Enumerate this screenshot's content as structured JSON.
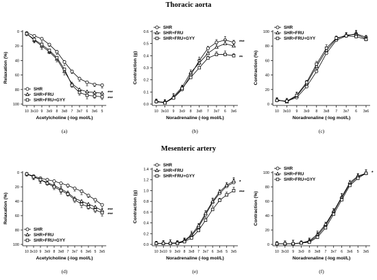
{
  "sections": [
    {
      "title": "Thoracic aorta"
    },
    {
      "title": "Mesenteric artery"
    }
  ],
  "chart_data": [
    {
      "panel": "(a)",
      "type": "line",
      "xlabel": "Acetylcholine (-log mol/L)",
      "ylabel": "Relaxation (%)",
      "x_ticks": [
        "10",
        "3x10",
        "9",
        "3x9",
        "8",
        "3x8",
        "7",
        "3x7",
        "6",
        "3x6",
        "5"
      ],
      "y_ticks": [
        "0",
        "20",
        "40",
        "60",
        "80",
        "100"
      ],
      "ylim": [
        0,
        100
      ],
      "y_inverted": true,
      "legend": [
        "SHR",
        "SHR+FRU",
        "SHR+FRU+GYY"
      ],
      "legend_position": "bottom-left",
      "significance": [
        "***",
        "***"
      ],
      "series": [
        {
          "name": "SHR",
          "marker": "circle",
          "values": [
            2,
            6,
            10,
            18,
            28,
            42,
            55,
            65,
            70,
            73,
            74
          ]
        },
        {
          "name": "SHR+FRU",
          "marker": "triangle",
          "values": [
            3,
            12,
            20,
            28,
            38,
            55,
            72,
            80,
            83,
            84,
            85
          ]
        },
        {
          "name": "SHR+FRU+GYY",
          "marker": "square",
          "values": [
            3,
            11,
            18,
            26,
            36,
            52,
            74,
            84,
            88,
            89,
            90
          ]
        }
      ]
    },
    {
      "panel": "(b)",
      "type": "line",
      "xlabel": "Noradrenaline (-log mol/L)",
      "ylabel": "Contraction (g)",
      "x_ticks": [
        "10",
        "3x10",
        "9",
        "3x9",
        "8",
        "3x8",
        "7",
        "3x7",
        "6",
        "3x6"
      ],
      "y_ticks": [
        "0.0",
        "0.1",
        "0.2",
        "0.3",
        "0.4",
        "0.5",
        "0.6"
      ],
      "ylim": [
        0,
        0.6
      ],
      "y_inverted": false,
      "legend": [
        "SHR",
        "SHR+FRU",
        "SHR+FRU+GYY"
      ],
      "legend_position": "top-left",
      "significance": [
        "***",
        "**"
      ],
      "series": [
        {
          "name": "SHR",
          "marker": "circle",
          "values": [
            0.02,
            0.015,
            0.05,
            0.12,
            0.24,
            0.36,
            0.46,
            0.51,
            0.53,
            0.51
          ]
        },
        {
          "name": "SHR+FRU",
          "marker": "triangle",
          "values": [
            0.025,
            0.01,
            0.06,
            0.14,
            0.26,
            0.34,
            0.42,
            0.47,
            0.5,
            0.48
          ]
        },
        {
          "name": "SHR+FRU+GYY",
          "marker": "square",
          "values": [
            0.02,
            0.01,
            0.05,
            0.13,
            0.22,
            0.3,
            0.38,
            0.41,
            0.41,
            0.4
          ]
        }
      ]
    },
    {
      "panel": "(c)",
      "type": "line",
      "xlabel": "Noradrenaline (-log mol/L)",
      "ylabel": "Contraction (%)",
      "x_ticks": [
        "10",
        "3x10",
        "9",
        "3x9",
        "8",
        "3x8",
        "7",
        "3x7",
        "6",
        "3x6"
      ],
      "y_ticks": [
        "0",
        "20",
        "40",
        "60",
        "80",
        "100"
      ],
      "ylim": [
        0,
        100
      ],
      "y_inverted": false,
      "legend": [
        "SHR",
        "SHR+FRU",
        "SHR+FRU+GYY"
      ],
      "legend_position": "top-left",
      "series": [
        {
          "name": "SHR",
          "marker": "circle",
          "values": [
            5,
            4,
            9,
            24,
            45,
            70,
            88,
            94,
            97,
            92
          ]
        },
        {
          "name": "SHR+FRU",
          "marker": "triangle",
          "values": [
            6,
            3,
            11,
            28,
            52,
            74,
            90,
            95,
            96,
            90
          ]
        },
        {
          "name": "SHR+FRU+GYY",
          "marker": "square",
          "values": [
            5,
            4,
            12,
            30,
            55,
            77,
            91,
            94,
            93,
            89
          ]
        }
      ]
    },
    {
      "panel": "(d)",
      "type": "line",
      "xlabel": "Acetylcholine (-log mol/L)",
      "ylabel": "Relaxation (%)",
      "x_ticks": [
        "10",
        "3x10",
        "9",
        "3x9",
        "8",
        "3x8",
        "7",
        "3x7",
        "6",
        "3x6",
        "5",
        "3x5"
      ],
      "y_ticks": [
        "0",
        "20",
        "40",
        "60",
        "80",
        "100"
      ],
      "ylim": [
        0,
        100
      ],
      "y_inverted": true,
      "legend": [
        "SHR",
        "SHR+FRU",
        "SHR+FRU+GYY"
      ],
      "legend_position": "bottom-left",
      "significance": [
        "***",
        "***"
      ],
      "series": [
        {
          "name": "SHR",
          "marker": "circle",
          "values": [
            2,
            5,
            8,
            10,
            12,
            15,
            18,
            22,
            26,
            32,
            38,
            45
          ]
        },
        {
          "name": "SHR+FRU",
          "marker": "triangle",
          "values": [
            2,
            6,
            10,
            14,
            18,
            23,
            28,
            36,
            40,
            44,
            48,
            53
          ]
        },
        {
          "name": "SHR+FRU+GYY",
          "marker": "square",
          "values": [
            2,
            6,
            10,
            15,
            20,
            25,
            30,
            38,
            44,
            48,
            52,
            56
          ]
        }
      ]
    },
    {
      "panel": "(e)",
      "type": "line",
      "xlabel": "Noradrenaline (-log mol/L)",
      "ylabel": "Contraction (g)",
      "x_ticks": [
        "10",
        "3x10",
        "9",
        "3x9",
        "8",
        "3x8",
        "7",
        "3x7",
        "6",
        "3x6",
        "5",
        "3x5"
      ],
      "y_ticks": [
        "0.0",
        "0.2",
        "0.4",
        "0.6",
        "0.8",
        "1.0",
        "1.2",
        "1.4"
      ],
      "ylim": [
        0,
        1.4
      ],
      "y_inverted": false,
      "legend": [
        "SHR",
        "SHR+FRU",
        "SHR+FRU+GYY"
      ],
      "legend_position": "top-left",
      "significance": [
        "*",
        "***"
      ],
      "series": [
        {
          "name": "SHR",
          "marker": "circle",
          "values": [
            0.02,
            0.02,
            0.02,
            0.03,
            0.06,
            0.16,
            0.32,
            0.55,
            0.78,
            0.95,
            1.08,
            1.15
          ]
        },
        {
          "name": "SHR+FRU",
          "marker": "triangle",
          "values": [
            0.02,
            0.02,
            0.02,
            0.03,
            0.07,
            0.18,
            0.35,
            0.58,
            0.8,
            0.98,
            1.1,
            1.18
          ]
        },
        {
          "name": "SHR+FRU+GYY",
          "marker": "square",
          "values": [
            0.02,
            0.02,
            0.02,
            0.02,
            0.05,
            0.12,
            0.26,
            0.45,
            0.65,
            0.82,
            0.92,
            1.0
          ]
        }
      ]
    },
    {
      "panel": "(f)",
      "type": "line",
      "xlabel": "Noradrenaline (-log mol/L)",
      "ylabel": "Contraction (%)",
      "x_ticks": [
        "10",
        "3x10",
        "9",
        "3x9",
        "8",
        "3x8",
        "7",
        "3x7",
        "6",
        "3x6",
        "5",
        "3x5"
      ],
      "y_ticks": [
        "0",
        "20",
        "40",
        "60",
        "80",
        "100"
      ],
      "ylim": [
        0,
        100
      ],
      "y_inverted": false,
      "legend": [
        "SHR",
        "SHR+FRU",
        "SHR+FRU+GYY"
      ],
      "legend_position": "top-left",
      "significance": [
        "*"
      ],
      "series": [
        {
          "name": "SHR",
          "marker": "circle",
          "values": [
            1,
            1,
            1,
            2,
            4,
            12,
            26,
            45,
            65,
            84,
            94,
            99
          ]
        },
        {
          "name": "SHR+FRU",
          "marker": "triangle",
          "values": [
            1,
            1,
            1,
            2,
            5,
            14,
            28,
            46,
            66,
            86,
            95,
            99
          ]
        },
        {
          "name": "SHR+FRU+GYY",
          "marker": "square",
          "values": [
            1,
            1,
            1,
            2,
            3,
            10,
            23,
            42,
            62,
            82,
            92,
            99
          ]
        }
      ]
    }
  ]
}
